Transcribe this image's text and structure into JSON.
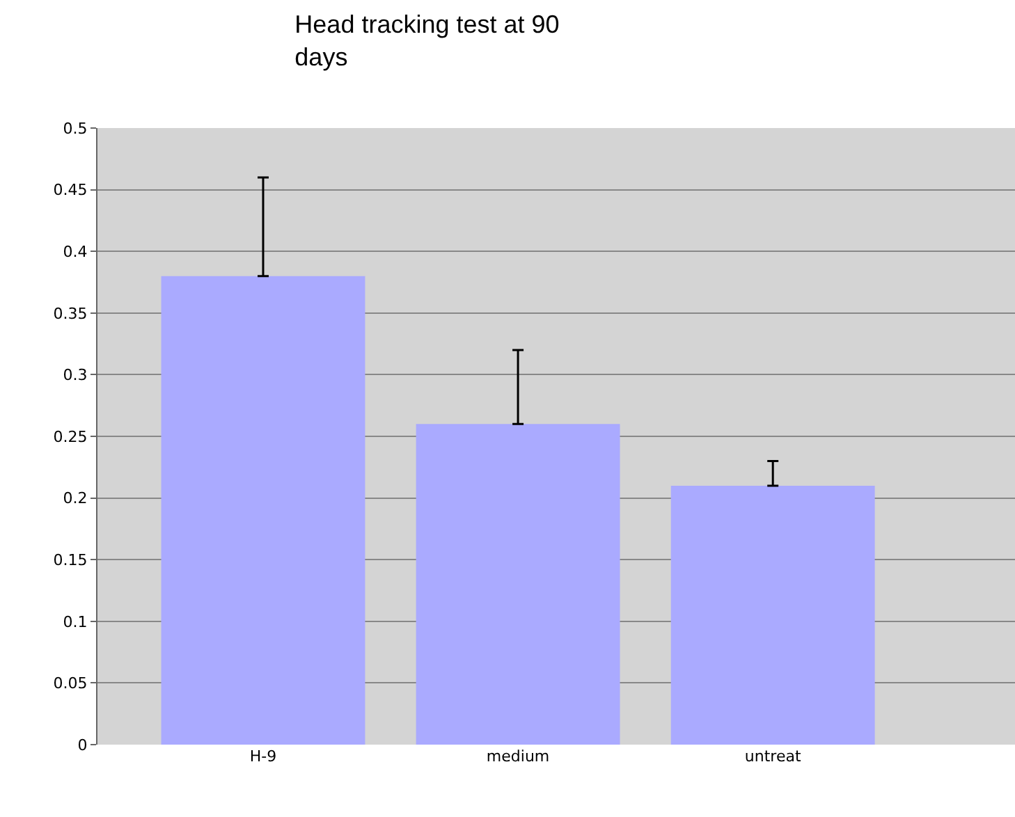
{
  "chart_data": {
    "type": "bar",
    "title": "Head tracking test at 90\ndays",
    "categories": [
      "H-9",
      "medium",
      "untreat"
    ],
    "values": [
      0.38,
      0.26,
      0.21
    ],
    "color": "#aaaaff",
    "errors": [
      [
        0.38,
        0.46
      ],
      [
        0.26,
        0.32
      ],
      [
        0.21,
        0.23
      ]
    ],
    "ylim": [
      0,
      0.5
    ],
    "yticks": [
      0,
      0.05,
      0.1,
      0.15,
      0.2,
      0.25,
      0.3,
      0.35,
      0.4,
      0.45,
      0.5
    ],
    "grid": "y"
  }
}
